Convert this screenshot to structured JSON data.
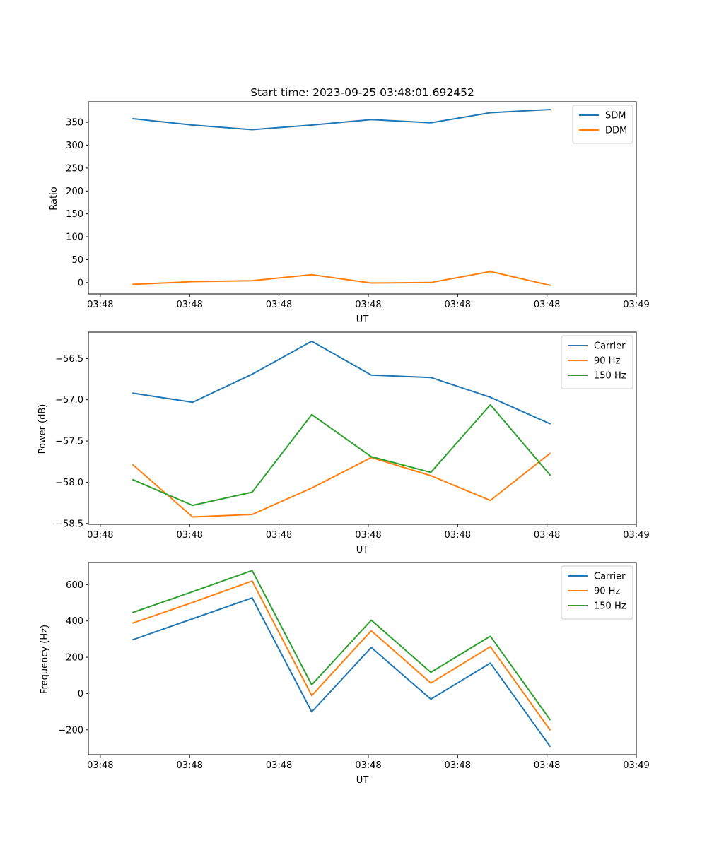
{
  "colors": {
    "blue": "#1f77b4",
    "orange": "#ff7f0e",
    "green": "#2ca02c"
  },
  "chart_data": [
    {
      "type": "line",
      "title": "Start time: 2023-09-25 03:48:01.692452",
      "xlabel": "UT",
      "ylabel": "Ratio",
      "x": [
        0,
        1,
        2,
        3,
        4,
        5,
        6,
        7
      ],
      "xlim": [
        -0.75,
        8.45
      ],
      "xticks": [
        -0.55,
        0.95,
        2.45,
        3.95,
        5.45,
        6.95,
        8.45
      ],
      "xticklabels": [
        "03:48",
        "03:48",
        "03:48",
        "03:48",
        "03:48",
        "03:48",
        "03:49"
      ],
      "ylim": [
        -25,
        395
      ],
      "yticks": [
        0,
        50,
        100,
        150,
        200,
        250,
        300,
        350
      ],
      "yticklabels": [
        "0",
        "50",
        "100",
        "150",
        "200",
        "250",
        "300",
        "350"
      ],
      "legend_loc": "upper right",
      "series": [
        {
          "name": "SDM",
          "color": "#1f77b4",
          "values": [
            358,
            344,
            334,
            344,
            356,
            349,
            371,
            378
          ]
        },
        {
          "name": "DDM",
          "color": "#ff7f0e",
          "values": [
            -4,
            2,
            4,
            17,
            -1,
            0,
            24,
            -6
          ]
        }
      ]
    },
    {
      "type": "line",
      "title": "",
      "xlabel": "UT",
      "ylabel": "Power (dB)",
      "x": [
        0,
        1,
        2,
        3,
        4,
        5,
        6,
        7
      ],
      "xlim": [
        -0.75,
        8.45
      ],
      "xticks": [
        -0.55,
        0.95,
        2.45,
        3.95,
        5.45,
        6.95,
        8.45
      ],
      "xticklabels": [
        "03:48",
        "03:48",
        "03:48",
        "03:48",
        "03:48",
        "03:48",
        "03:49"
      ],
      "ylim": [
        -58.51,
        -56.18
      ],
      "yticks": [
        -58.5,
        -58.0,
        -57.5,
        -57.0,
        -56.5
      ],
      "yticklabels": [
        "−58.5",
        "−58.0",
        "−57.5",
        "−57.0",
        "−56.5"
      ],
      "legend_loc": "upper right",
      "series": [
        {
          "name": "Carrier",
          "color": "#1f77b4",
          "values": [
            -56.92,
            -57.03,
            -56.69,
            -56.29,
            -56.7,
            -56.73,
            -56.97,
            -57.29
          ]
        },
        {
          "name": "90 Hz",
          "color": "#ff7f0e",
          "values": [
            -57.79,
            -58.42,
            -58.39,
            -58.07,
            -57.7,
            -57.92,
            -58.22,
            -57.65
          ]
        },
        {
          "name": "150 Hz",
          "color": "#2ca02c",
          "values": [
            -57.97,
            -58.28,
            -58.12,
            -57.18,
            -57.69,
            -57.88,
            -57.06,
            -57.91
          ]
        }
      ]
    },
    {
      "type": "line",
      "title": "",
      "xlabel": "UT",
      "ylabel": "Frequency (Hz)",
      "x": [
        0,
        1,
        2,
        3,
        4,
        5,
        6,
        7
      ],
      "xlim": [
        -0.75,
        8.45
      ],
      "xticks": [
        -0.55,
        0.95,
        2.45,
        3.95,
        5.45,
        6.95,
        8.45
      ],
      "xticklabels": [
        "03:48",
        "03:48",
        "03:48",
        "03:48",
        "03:48",
        "03:48",
        "03:49"
      ],
      "ylim": [
        -337,
        722
      ],
      "yticks": [
        -200,
        0,
        200,
        400,
        600
      ],
      "yticklabels": [
        "−200",
        "0",
        "200",
        "400",
        "600"
      ],
      "legend_loc": "upper right",
      "series": [
        {
          "name": "Carrier",
          "color": "#1f77b4",
          "values": [
            297,
            412,
            527,
            -101,
            254,
            -31,
            168,
            -290
          ]
        },
        {
          "name": "90 Hz",
          "color": "#ff7f0e",
          "values": [
            389,
            502,
            620,
            -11,
            346,
            58,
            258,
            -200
          ]
        },
        {
          "name": "150 Hz",
          "color": "#2ca02c",
          "values": [
            447,
            561,
            678,
            48,
            404,
            117,
            316,
            -143
          ]
        }
      ]
    }
  ]
}
